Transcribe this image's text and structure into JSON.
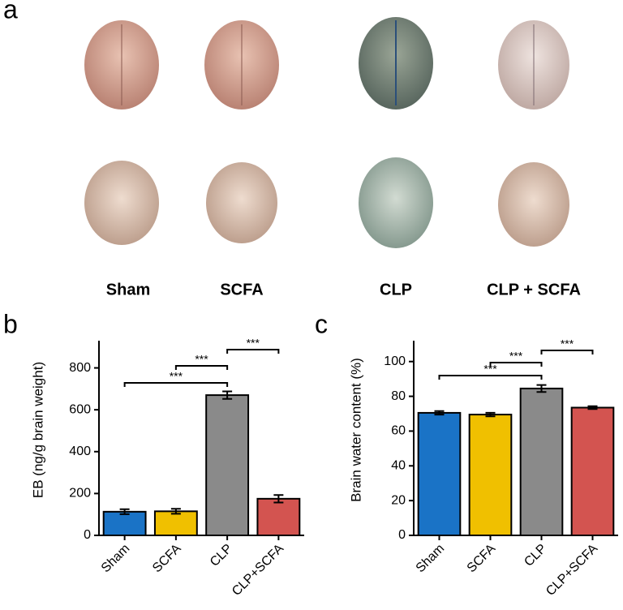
{
  "panel_labels": [
    "a",
    "b",
    "c"
  ],
  "photo_groups": [
    "Sham",
    "SCFA",
    "CLP",
    "CLP + SCFA"
  ],
  "chart_data": [
    {
      "type": "bar",
      "y_label": "EB (ng/g brain weight)",
      "categories": [
        "Sham",
        "SCFA",
        "CLP",
        "CLP+SCFA"
      ],
      "values": [
        113,
        115,
        670,
        175
      ],
      "errors": [
        12,
        12,
        18,
        18
      ],
      "colors": [
        "#1a73c6",
        "#f0c000",
        "#8a8a8a",
        "#d35450"
      ],
      "ylim": [
        0,
        930
      ],
      "yticks": [
        0,
        200,
        400,
        600,
        800
      ],
      "annotations": [
        "***",
        "***",
        "***"
      ]
    },
    {
      "type": "bar",
      "y_label": "Brain water content (%)",
      "categories": [
        "Sham",
        "SCFA",
        "CLP",
        "CLP+SCFA"
      ],
      "values": [
        70.5,
        69.5,
        84.5,
        73.5
      ],
      "errors": [
        1,
        1,
        2,
        0.8
      ],
      "colors": [
        "#1a73c6",
        "#f0c000",
        "#8a8a8a",
        "#d35450"
      ],
      "ylim": [
        0,
        112
      ],
      "yticks": [
        0,
        20,
        40,
        60,
        80,
        100
      ],
      "annotations": [
        "***",
        "***",
        "***"
      ]
    }
  ]
}
